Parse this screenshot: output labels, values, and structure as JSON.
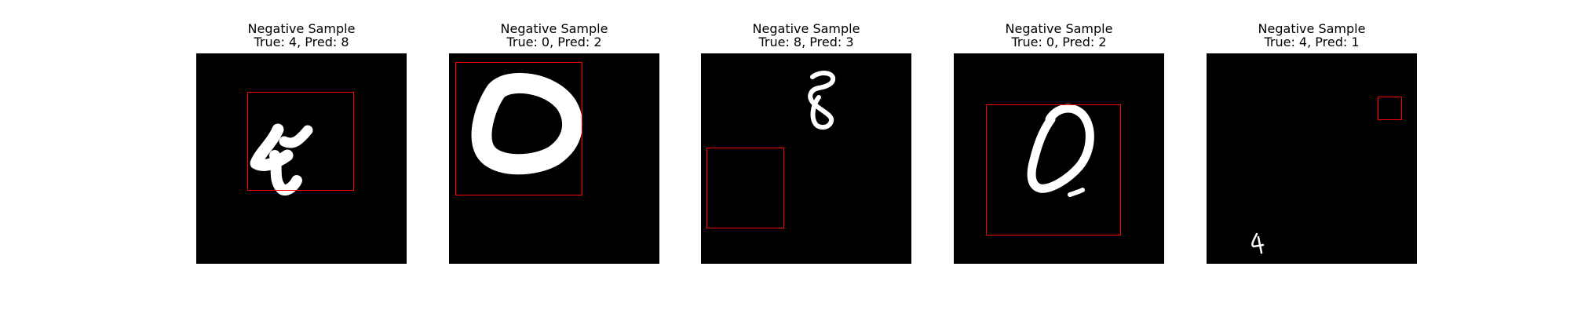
{
  "samples": [
    {
      "title": "Negative Sample",
      "label": "True: 4, Pred: 8",
      "true_digit": "4",
      "pred_digit": "8"
    },
    {
      "title": "Negative Sample",
      "label": "True: 0, Pred: 2",
      "true_digit": "0",
      "pred_digit": "2"
    },
    {
      "title": "Negative Sample",
      "label": "True: 8, Pred: 3",
      "true_digit": "8",
      "pred_digit": "3"
    },
    {
      "title": "Negative Sample",
      "label": "True: 0, Pred: 2",
      "true_digit": "0",
      "pred_digit": "2"
    },
    {
      "title": "Negative Sample",
      "label": "True: 4, Pred: 1",
      "true_digit": "4",
      "pred_digit": "1"
    }
  ],
  "colors": {
    "background": "#ffffff",
    "image_background": "#000000",
    "digit_stroke": "#ffffff",
    "box_outline": "#ff0000"
  }
}
